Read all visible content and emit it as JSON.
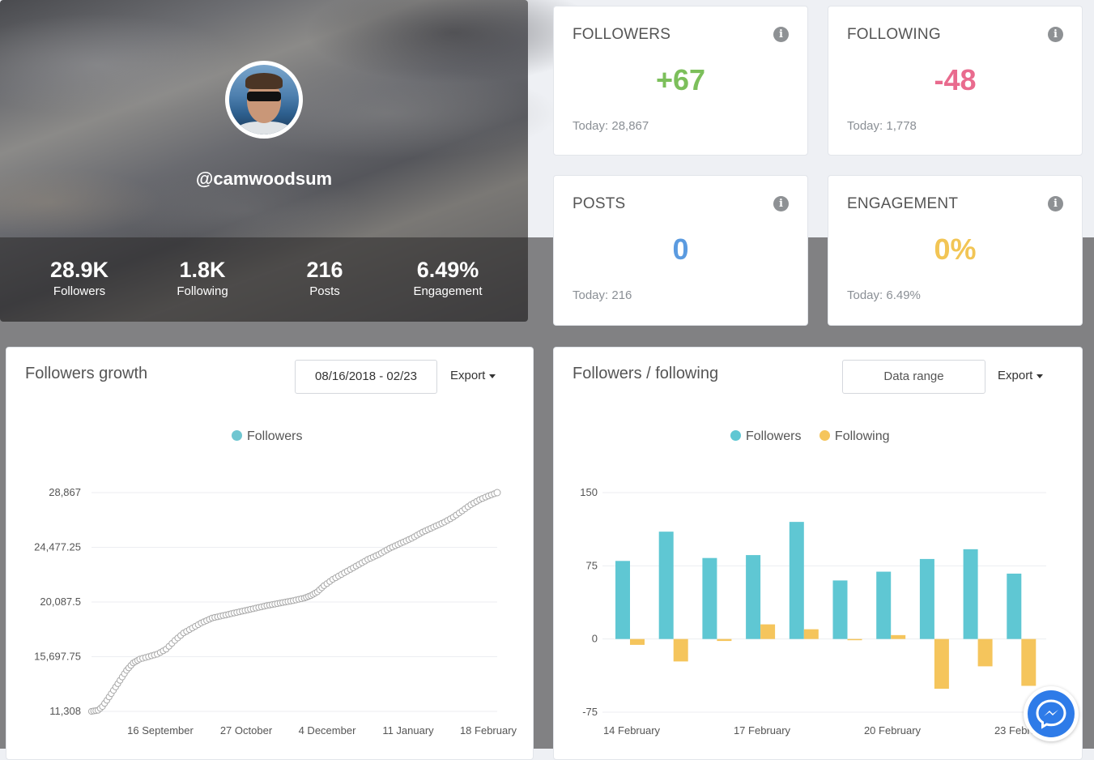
{
  "profile": {
    "handle": "@camwoodsum",
    "stats": [
      {
        "value": "28.9K",
        "label": "Followers"
      },
      {
        "value": "1.8K",
        "label": "Following"
      },
      {
        "value": "216",
        "label": "Posts"
      },
      {
        "value": "6.49%",
        "label": "Engagement"
      }
    ]
  },
  "stat_cards": {
    "followers": {
      "title": "FOLLOWERS",
      "value": "+67",
      "today": "Today: 28,867",
      "color": "#7cbf5b"
    },
    "following": {
      "title": "FOLLOWING",
      "value": "-48",
      "today": "Today: 1,778",
      "color": "#e96b8e"
    },
    "posts": {
      "title": "POSTS",
      "value": "0",
      "today": "Today: 216",
      "color": "#5b9be0"
    },
    "engagement": {
      "title": "ENGAGEMENT",
      "value": "0%",
      "today": "Today: 6.49%",
      "color": "#f2c555"
    }
  },
  "growth_panel": {
    "title": "Followers growth",
    "date_range": "08/16/2018 - 02/23",
    "export_label": "Export"
  },
  "ff_panel": {
    "title": "Followers / following",
    "range_button": "Data range",
    "export_label": "Export"
  },
  "chart_data": [
    {
      "type": "line",
      "legend": [
        "Followers"
      ],
      "series": [
        {
          "name": "Followers",
          "color": "#6fc6d1"
        }
      ],
      "y_ticks": [
        "28,867",
        "24,477.25",
        "20,087.5",
        "15,697.75",
        "11,308"
      ],
      "ylim": [
        11308,
        28867
      ],
      "x_ticks": [
        "16 September",
        "27 October",
        "4 December",
        "11 January",
        "18 February"
      ],
      "curve_points": [
        [
          0,
          11308
        ],
        [
          3,
          11400
        ],
        [
          5,
          11700
        ],
        [
          7,
          12200
        ],
        [
          10,
          13000
        ],
        [
          13,
          13800
        ],
        [
          16,
          14600
        ],
        [
          19,
          15200
        ],
        [
          22,
          15500
        ],
        [
          26,
          15700
        ],
        [
          30,
          15900
        ],
        [
          34,
          16300
        ],
        [
          38,
          17000
        ],
        [
          42,
          17600
        ],
        [
          46,
          18000
        ],
        [
          50,
          18400
        ],
        [
          55,
          18800
        ],
        [
          60,
          19000
        ],
        [
          65,
          19200
        ],
        [
          70,
          19400
        ],
        [
          75,
          19600
        ],
        [
          80,
          19800
        ],
        [
          86,
          20000
        ],
        [
          92,
          20200
        ],
        [
          97,
          20400
        ],
        [
          100,
          20600
        ],
        [
          103,
          20900
        ],
        [
          106,
          21400
        ],
        [
          110,
          21900
        ],
        [
          114,
          22300
        ],
        [
          118,
          22700
        ],
        [
          122,
          23100
        ],
        [
          126,
          23500
        ],
        [
          131,
          23900
        ],
        [
          136,
          24400
        ],
        [
          141,
          24800
        ],
        [
          146,
          25200
        ],
        [
          151,
          25700
        ],
        [
          156,
          26100
        ],
        [
          161,
          26500
        ],
        [
          165,
          26900
        ],
        [
          169,
          27400
        ],
        [
          173,
          27900
        ],
        [
          177,
          28300
        ],
        [
          181,
          28600
        ],
        [
          185,
          28867
        ]
      ]
    },
    {
      "type": "bar",
      "legend": [
        "Followers",
        "Following"
      ],
      "series": [
        {
          "name": "Followers",
          "color": "#5fc7d3",
          "values": [
            80,
            110,
            83,
            86,
            120,
            60,
            69,
            82,
            92,
            67
          ]
        },
        {
          "name": "Following",
          "color": "#f5c55c",
          "values": [
            -6,
            -23,
            -2,
            15,
            10,
            -1,
            4,
            -51,
            -28,
            -48
          ]
        }
      ],
      "y_ticks": [
        "150",
        "75",
        "0",
        "-75"
      ],
      "ylim": [
        -75,
        150
      ],
      "x_ticks": [
        "14 February",
        "17 February",
        "20 February",
        "23 February"
      ]
    }
  ]
}
